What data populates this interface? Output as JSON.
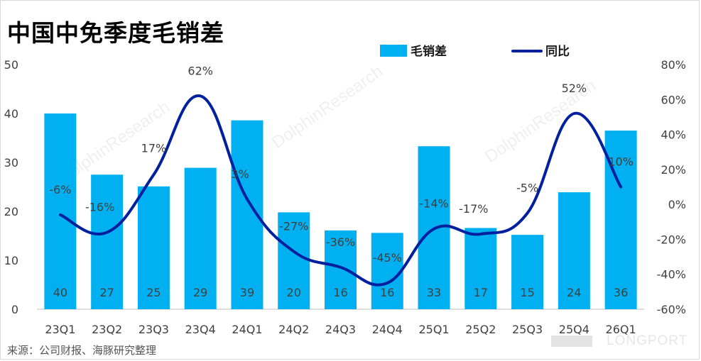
{
  "title": "中国中免季度毛销差",
  "source": "来源：公司财报、海豚研究整理",
  "watermark": "DolphinResearch",
  "brand": "LONGPORT",
  "colors": {
    "bar": "#00b0f0",
    "line": "#00209f",
    "bg": "#ffffff"
  },
  "chart_data": {
    "type": "bar",
    "categories": [
      "23Q1",
      "23Q2",
      "23Q3",
      "23Q4",
      "24Q1",
      "24Q2",
      "24Q3",
      "24Q4",
      "25Q1",
      "25Q2",
      "25Q3",
      "25Q4",
      "26Q1"
    ],
    "series": [
      {
        "name": "毛销差",
        "type": "bar",
        "axis": "left",
        "values": [
          40.0,
          27.5,
          25.1,
          28.9,
          38.6,
          19.8,
          16.1,
          15.6,
          33.3,
          16.6,
          15.2,
          23.9,
          36.5
        ],
        "labels": [
          "40",
          "27",
          "25",
          "29",
          "39",
          "20",
          "16",
          "16",
          "33",
          "17",
          "15",
          "24",
          "36"
        ]
      },
      {
        "name": "同比",
        "type": "line",
        "axis": "right",
        "values": [
          -6,
          -16,
          17,
          62,
          3,
          -27,
          -36,
          -45,
          -14,
          -17,
          -5,
          52,
          10
        ],
        "labels": [
          "-6%",
          "-16%",
          "17%",
          "62%",
          "3%",
          "-27%",
          "-36%",
          "-45%",
          "-14%",
          "-17%",
          "-5%",
          "52%",
          "10%"
        ]
      }
    ],
    "y_left": {
      "range": [
        0,
        50
      ],
      "ticks": [
        "0",
        "10",
        "20",
        "30",
        "40",
        "50"
      ]
    },
    "y_right": {
      "range": [
        -60,
        80
      ],
      "ticks": [
        "-60%",
        "-40%",
        "-20%",
        "0%",
        "20%",
        "40%",
        "60%",
        "80%"
      ]
    },
    "legend_position": "top-right",
    "grid": false
  }
}
